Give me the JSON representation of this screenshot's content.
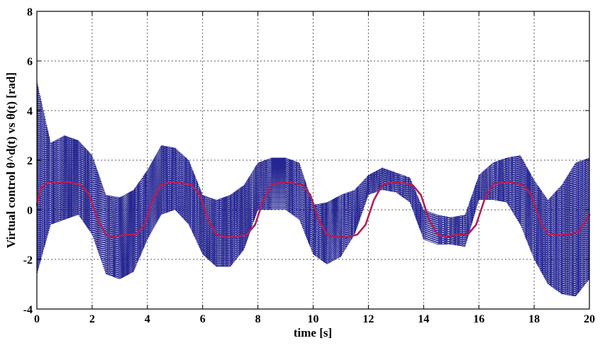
{
  "chart_data": {
    "type": "line",
    "title": "",
    "xlabel": "time [s]",
    "ylabel": "Virtual control θ^d(t) vs θ(t) [rad]",
    "xlim": [
      0,
      20
    ],
    "ylim": [
      -4,
      8
    ],
    "x_ticks": [
      0,
      2,
      4,
      6,
      8,
      10,
      12,
      14,
      16,
      18,
      20
    ],
    "y_ticks": [
      -4,
      -2,
      0,
      2,
      4,
      6,
      8
    ],
    "x_tick_labels": [
      "0",
      "2",
      "4",
      "6",
      "8",
      "10",
      "12",
      "14",
      "16",
      "18",
      "20"
    ],
    "y_tick_labels": [
      "-4",
      "-2",
      "0",
      "2",
      "4",
      "6",
      "8"
    ],
    "grid": true,
    "legend": "none",
    "series": [
      {
        "style": "dotted",
        "color": "#1a1a8c",
        "x": [
          0,
          0.5,
          1,
          1.5,
          2,
          2.5,
          3,
          3.5,
          4,
          4.5,
          5,
          5.5,
          6,
          6.5,
          7,
          7.5,
          8,
          8.5,
          9,
          9.5,
          10,
          10.5,
          11,
          11.5,
          12,
          12.5,
          13,
          13.5,
          14,
          14.5,
          15,
          15.5,
          16,
          16.5,
          17,
          17.5,
          18,
          18.5,
          19,
          19.5,
          20
        ],
        "y_upper": [
          5.2,
          2.7,
          3.0,
          2.8,
          2.2,
          0.6,
          0.5,
          0.8,
          1.6,
          2.6,
          2.5,
          2.0,
          0.6,
          0.4,
          0.6,
          1.0,
          1.9,
          2.1,
          2.1,
          1.9,
          0.2,
          0.3,
          0.6,
          0.8,
          1.4,
          1.7,
          1.5,
          1.3,
          0.0,
          -0.2,
          -0.3,
          -0.2,
          1.4,
          1.9,
          2.1,
          2.2,
          1.2,
          0.4,
          1.0,
          1.9,
          2.1
        ],
        "y_lower": [
          -2.6,
          -0.6,
          -0.4,
          -0.2,
          -1.0,
          -2.6,
          -2.8,
          -2.5,
          -1.2,
          -0.2,
          0.0,
          -0.6,
          -1.8,
          -2.3,
          -2.3,
          -1.6,
          0.0,
          0.0,
          0.0,
          -0.4,
          -1.8,
          -2.2,
          -1.9,
          -1.0,
          0.6,
          0.8,
          0.7,
          0.3,
          -1.2,
          -1.4,
          -1.4,
          -1.5,
          0.4,
          0.4,
          0.3,
          -0.6,
          -2.0,
          -3.0,
          -3.4,
          -3.5,
          -2.8
        ]
      },
      {
        "style": "solid",
        "color": "#b0205a",
        "x": [
          0,
          0.15,
          0.4,
          0.8,
          1.2,
          1.6,
          1.9,
          2.2,
          2.5,
          2.8,
          3.2,
          3.6,
          3.9,
          4.2,
          4.5,
          4.8,
          5.2,
          5.6,
          5.9,
          6.2,
          6.5,
          6.8,
          7.2,
          7.6,
          7.9,
          8.2,
          8.5,
          8.8,
          9.2,
          9.6,
          9.9,
          10.2,
          10.5,
          10.8,
          11.2,
          11.6,
          11.9,
          12.2,
          12.5,
          12.8,
          13.2,
          13.6,
          13.9,
          14.2,
          14.5,
          14.8,
          15.2,
          15.6,
          15.9,
          16.2,
          16.5,
          16.8,
          17.2,
          17.6,
          17.9,
          18.2,
          18.5,
          18.8,
          19.2,
          19.6,
          20
        ],
        "y": [
          0.2,
          0.9,
          1.1,
          1.1,
          1.1,
          1.0,
          0.6,
          -0.4,
          -1.0,
          -1.1,
          -1.0,
          -1.0,
          -0.6,
          0.4,
          1.0,
          1.1,
          1.1,
          1.0,
          0.6,
          -0.4,
          -1.0,
          -1.1,
          -1.1,
          -1.0,
          -0.6,
          0.4,
          1.0,
          1.1,
          1.1,
          1.0,
          0.6,
          -0.4,
          -1.0,
          -1.1,
          -1.1,
          -1.0,
          -0.6,
          0.4,
          1.0,
          1.1,
          1.1,
          1.0,
          0.6,
          -0.4,
          -1.0,
          -1.1,
          -1.0,
          -1.0,
          -0.6,
          0.4,
          1.0,
          1.1,
          1.1,
          1.0,
          0.6,
          -0.4,
          -1.0,
          -1.0,
          -1.0,
          -0.9,
          -0.2
        ]
      }
    ]
  }
}
